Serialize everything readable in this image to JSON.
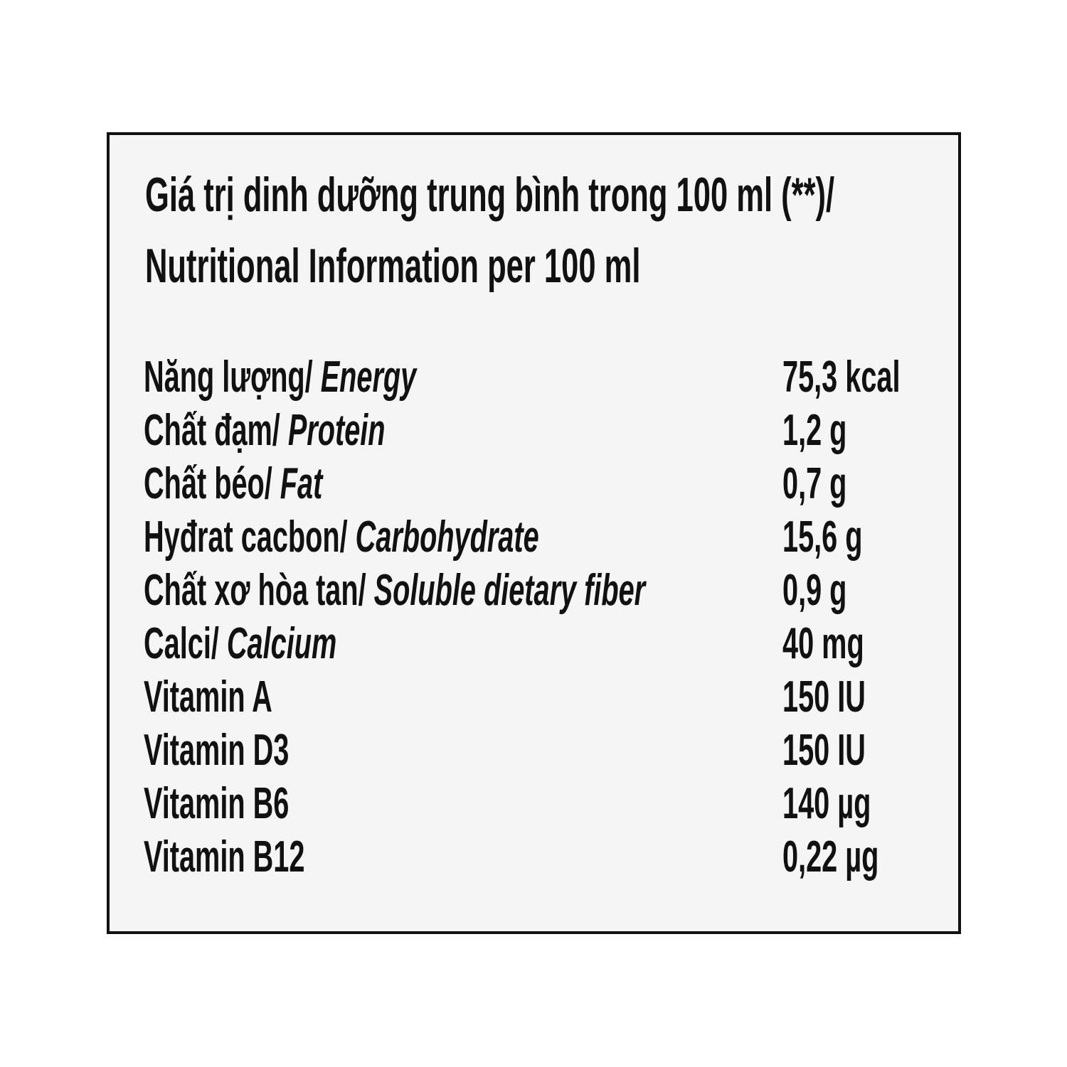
{
  "title": {
    "line1": "Giá trị dinh dưỡng trung bình trong 100 ml  (**)/",
    "line2": "Nutritional Information per 100 ml"
  },
  "rows": [
    {
      "label_vi": "Năng lượng/ ",
      "label_en": "Energy",
      "value": "75,3  kcal"
    },
    {
      "label_vi": "Chất đạm/ ",
      "label_en": "Protein",
      "value": "1,2 g"
    },
    {
      "label_vi": "Chất béo/ ",
      "label_en": "Fat",
      "value": "0,7 g"
    },
    {
      "label_vi": "Hyđrat cacbon/ ",
      "label_en": "Carbohydrate",
      "value": "15,6 g"
    },
    {
      "label_vi": "Chất xơ hòa tan/ ",
      "label_en": "Soluble dietary fiber",
      "value": "0,9 g"
    },
    {
      "label_vi": "Calci/ ",
      "label_en": "Calcium",
      "value": "40 mg"
    },
    {
      "label_vi": "Vitamin A",
      "label_en": "",
      "value": "150 IU"
    },
    {
      "label_vi": "Vitamin D3",
      "label_en": "",
      "value": "150 IU"
    },
    {
      "label_vi": "Vitamin B6",
      "label_en": "",
      "value": "140 µg"
    },
    {
      "label_vi": "Vitamin B12",
      "label_en": "",
      "value": "0,22 µg"
    }
  ]
}
